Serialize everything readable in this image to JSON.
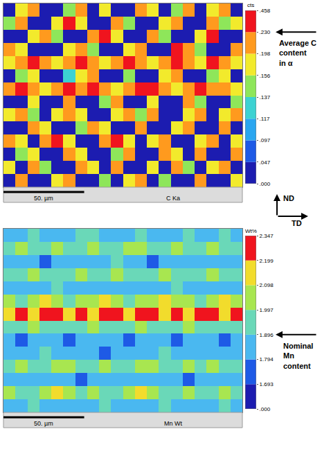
{
  "chart_data": [
    {
      "type": "heatmap",
      "label": "C Ka",
      "xlim": [
        0,
        148
      ],
      "ylim": [
        0,
        114
      ],
      "tick_labels": false,
      "scale_bar": {
        "length": 50,
        "label": "50. µm"
      },
      "direction_labels": {
        "vertical": "ND",
        "horizontal": "TD"
      },
      "colorbar": {
        "title": "cts",
        "range": [
          0,
          0.458
        ],
        "ticks": [
          {
            "value": 0,
            "label": ".000"
          },
          {
            "value": 0.047,
            "label": ".047"
          },
          {
            "value": 0.097,
            "label": ".097"
          },
          {
            "value": 0.117,
            "label": ".117"
          },
          {
            "value": 0.137,
            "label": ".137"
          },
          {
            "value": 0.156,
            "label": ".156"
          },
          {
            "value": 0.198,
            "label": ".198"
          },
          {
            "value": 0.23,
            "label": ".230"
          },
          {
            "value": 0.458,
            "label": ".458"
          }
        ],
        "colors": [
          "#1c1cb0",
          "#1e5ae6",
          "#2aa6f0",
          "#3cd2d2",
          "#8ee65a",
          "#f2ea2c",
          "#ff9a1e",
          "#f0141e"
        ]
      },
      "annotations": [
        {
          "text": "Average C content in α",
          "value": 0.23
        }
      ],
      "cells": [
        [
          0.02,
          0.18,
          0.21,
          0.02,
          0.02,
          0.15,
          0.21,
          0.02,
          0.18,
          0.02,
          0.02,
          0.21,
          0.18,
          0.02,
          0.15,
          0.21,
          0.02,
          0.18,
          0.21,
          0.02
        ],
        [
          0.15,
          0.21,
          0.02,
          0.02,
          0.18,
          0.28,
          0.18,
          0.02,
          0.02,
          0.21,
          0.15,
          0.02,
          0.02,
          0.18,
          0.21,
          0.02,
          0.02,
          0.21,
          0.15,
          0.18
        ],
        [
          0.02,
          0.02,
          0.18,
          0.21,
          0.15,
          0.02,
          0.02,
          0.21,
          0.28,
          0.18,
          0.02,
          0.02,
          0.21,
          0.15,
          0.02,
          0.02,
          0.18,
          0.28,
          0.02,
          0.02
        ],
        [
          0.21,
          0.18,
          0.02,
          0.02,
          0.02,
          0.18,
          0.21,
          0.15,
          0.02,
          0.02,
          0.18,
          0.21,
          0.02,
          0.02,
          0.28,
          0.21,
          0.15,
          0.02,
          0.02,
          0.21
        ],
        [
          0.18,
          0.21,
          0.28,
          0.21,
          0.18,
          0.21,
          0.28,
          0.21,
          0.18,
          0.21,
          0.28,
          0.21,
          0.18,
          0.21,
          0.28,
          0.21,
          0.18,
          0.28,
          0.21,
          0.18
        ],
        [
          0.02,
          0.15,
          0.18,
          0.02,
          0.02,
          0.13,
          0.18,
          0.21,
          0.02,
          0.02,
          0.15,
          0.02,
          0.02,
          0.18,
          0.21,
          0.02,
          0.02,
          0.15,
          0.18,
          0.02
        ],
        [
          0.21,
          0.28,
          0.21,
          0.18,
          0.21,
          0.28,
          0.21,
          0.28,
          0.21,
          0.18,
          0.21,
          0.28,
          0.28,
          0.21,
          0.18,
          0.21,
          0.28,
          0.21,
          0.21,
          0.18
        ],
        [
          0.02,
          0.02,
          0.18,
          0.02,
          0.02,
          0.21,
          0.02,
          0.02,
          0.15,
          0.21,
          0.02,
          0.02,
          0.18,
          0.02,
          0.02,
          0.21,
          0.15,
          0.02,
          0.02,
          0.15
        ],
        [
          0.18,
          0.21,
          0.15,
          0.02,
          0.18,
          0.21,
          0.18,
          0.02,
          0.02,
          0.18,
          0.21,
          0.15,
          0.21,
          0.02,
          0.02,
          0.18,
          0.21,
          0.02,
          0.18,
          0.21
        ],
        [
          0.02,
          0.02,
          0.21,
          0.18,
          0.02,
          0.02,
          0.15,
          0.21,
          0.18,
          0.02,
          0.02,
          0.21,
          0.02,
          0.02,
          0.18,
          0.21,
          0.02,
          0.02,
          0.21,
          0.02
        ],
        [
          0.21,
          0.18,
          0.02,
          0.21,
          0.28,
          0.18,
          0.02,
          0.02,
          0.21,
          0.28,
          0.18,
          0.02,
          0.18,
          0.21,
          0.02,
          0.02,
          0.18,
          0.21,
          0.02,
          0.18
        ],
        [
          0.02,
          0.15,
          0.18,
          0.02,
          0.02,
          0.21,
          0.18,
          0.02,
          0.02,
          0.15,
          0.21,
          0.02,
          0.02,
          0.21,
          0.18,
          0.02,
          0.21,
          0.02,
          0.02,
          0.21
        ],
        [
          0.18,
          0.02,
          0.21,
          0.15,
          0.02,
          0.02,
          0.21,
          0.18,
          0.02,
          0.21,
          0.02,
          0.02,
          0.18,
          0.02,
          0.21,
          0.15,
          0.02,
          0.18,
          0.21,
          0.02
        ],
        [
          0.02,
          0.21,
          0.02,
          0.02,
          0.18,
          0.21,
          0.02,
          0.02,
          0.15,
          0.02,
          0.18,
          0.21,
          0.02,
          0.15,
          0.02,
          0.02,
          0.21,
          0.02,
          0.02,
          0.18
        ]
      ]
    },
    {
      "type": "heatmap",
      "label": "Mn Wt",
      "xlim": [
        0,
        148
      ],
      "ylim": [
        0,
        114
      ],
      "tick_labels": false,
      "scale_bar": {
        "length": 50,
        "label": "50. µm"
      },
      "colorbar": {
        "title": "Wt%",
        "range": [
          0,
          2.347
        ],
        "ticks": [
          {
            "value": 0,
            "label": ".000"
          },
          1.693,
          1.794,
          1.896,
          1.997,
          2.098,
          2.199,
          2.347
        ],
        "colors": [
          "#1c1cb0",
          "#1e5ae6",
          "#4ab8f0",
          "#6ad8b8",
          "#a8e650",
          "#f2dc2c",
          "#f0141e"
        ]
      },
      "annotations": [
        {
          "text": "Nominal Mn content",
          "value": 1.896
        }
      ],
      "cells": [
        [
          1.85,
          1.85,
          1.95,
          1.85,
          1.85,
          1.85,
          1.95,
          1.95,
          1.85,
          1.85,
          1.85,
          1.95,
          1.85,
          1.85,
          1.85,
          1.95,
          1.85,
          1.85,
          1.95,
          1.85
        ],
        [
          1.95,
          2.05,
          1.95,
          1.95,
          2.05,
          1.95,
          1.95,
          2.05,
          1.95,
          1.95,
          2.05,
          2.05,
          1.95,
          1.95,
          2.05,
          1.95,
          1.95,
          2.05,
          1.95,
          1.95
        ],
        [
          1.85,
          1.85,
          1.85,
          1.75,
          1.85,
          1.85,
          1.85,
          1.85,
          1.85,
          1.95,
          1.85,
          1.85,
          1.75,
          1.85,
          1.85,
          1.85,
          1.85,
          1.85,
          1.85,
          1.85
        ],
        [
          1.95,
          1.95,
          2.05,
          1.95,
          1.95,
          1.95,
          2.05,
          1.95,
          1.95,
          2.05,
          1.95,
          1.95,
          1.95,
          2.05,
          1.95,
          1.95,
          1.95,
          2.05,
          1.95,
          1.95
        ],
        [
          1.85,
          1.85,
          1.85,
          1.85,
          1.95,
          1.85,
          1.85,
          1.85,
          1.85,
          1.85,
          1.85,
          1.85,
          1.85,
          1.85,
          1.95,
          1.85,
          1.85,
          1.85,
          1.85,
          1.85
        ],
        [
          2.05,
          1.95,
          2.05,
          2.15,
          2.05,
          1.95,
          2.05,
          2.05,
          2.15,
          2.05,
          1.95,
          2.05,
          2.05,
          2.15,
          2.05,
          2.05,
          1.95,
          2.05,
          2.15,
          2.05
        ],
        [
          2.15,
          2.25,
          2.15,
          2.25,
          2.25,
          2.15,
          2.25,
          2.15,
          2.25,
          2.25,
          2.15,
          2.25,
          2.25,
          2.15,
          2.25,
          2.15,
          2.25,
          2.25,
          2.15,
          2.25
        ],
        [
          1.95,
          1.95,
          2.05,
          1.95,
          1.95,
          1.95,
          1.95,
          2.05,
          1.95,
          1.95,
          1.95,
          2.05,
          1.95,
          1.95,
          1.95,
          2.05,
          1.95,
          1.95,
          1.95,
          1.95
        ],
        [
          1.85,
          1.75,
          1.85,
          1.85,
          1.85,
          1.75,
          1.85,
          1.85,
          1.85,
          1.85,
          1.75,
          1.85,
          1.85,
          1.85,
          1.75,
          1.85,
          1.85,
          1.85,
          1.75,
          1.85
        ],
        [
          1.85,
          1.85,
          1.85,
          1.95,
          1.85,
          1.85,
          1.85,
          1.85,
          1.75,
          1.85,
          1.85,
          1.85,
          1.85,
          1.95,
          1.85,
          1.85,
          1.85,
          1.85,
          1.85,
          1.85
        ],
        [
          1.95,
          2.05,
          1.95,
          1.95,
          2.05,
          2.05,
          1.95,
          1.95,
          2.05,
          1.95,
          1.95,
          2.05,
          2.05,
          1.95,
          1.95,
          2.05,
          1.95,
          2.05,
          1.95,
          1.95
        ],
        [
          1.85,
          1.85,
          1.85,
          1.85,
          1.85,
          1.85,
          1.75,
          1.85,
          1.85,
          1.85,
          1.85,
          1.85,
          1.85,
          1.85,
          1.85,
          1.75,
          1.85,
          1.85,
          1.85,
          1.85
        ],
        [
          2.05,
          1.95,
          1.95,
          2.05,
          2.15,
          2.05,
          1.95,
          2.05,
          1.95,
          1.95,
          2.05,
          2.15,
          2.05,
          1.95,
          1.95,
          2.05,
          1.95,
          1.95,
          2.05,
          1.95
        ],
        [
          1.85,
          1.85,
          1.95,
          1.85,
          1.85,
          1.85,
          1.85,
          1.85,
          1.95,
          1.85,
          1.85,
          1.85,
          1.85,
          1.95,
          1.85,
          1.85,
          1.85,
          1.85,
          1.95,
          1.85
        ]
      ]
    }
  ]
}
